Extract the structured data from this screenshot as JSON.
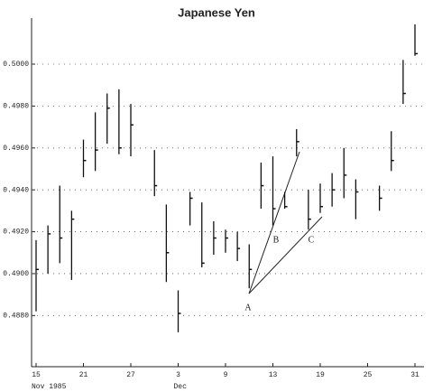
{
  "chart_data": {
    "type": "hlc",
    "title": "Japanese Yen",
    "categories": [
      "15",
      null,
      null,
      null,
      "21",
      null,
      null,
      null,
      "27",
      null,
      null,
      null,
      "3",
      null,
      null,
      null,
      "9",
      null,
      null,
      null,
      "13",
      null,
      null,
      null,
      "19",
      null,
      null,
      null,
      "25",
      null,
      null,
      null,
      "31"
    ],
    "month_labels": [
      "Nov 1985",
      null,
      null,
      null,
      null,
      null,
      null,
      null,
      null,
      null,
      null,
      null,
      "Dec",
      null,
      null,
      null,
      null,
      null,
      null,
      null,
      null,
      null,
      null,
      null,
      null,
      null,
      null,
      null,
      null,
      null,
      null,
      null,
      null
    ],
    "high": [
      0.4916,
      0.4923,
      0.4942,
      0.493,
      0.4964,
      0.4977,
      0.4986,
      0.4988,
      0.4981,
      null,
      0.4959,
      0.4933,
      0.4892,
      0.4939,
      0.4934,
      0.4925,
      0.4921,
      0.492,
      0.4914,
      0.4953,
      0.4956,
      0.4939,
      0.4969,
      0.494,
      0.4943,
      0.4948,
      0.496,
      0.4945,
      null,
      0.4942,
      0.4968,
      0.5002,
      0.5019
    ],
    "low": [
      0.4882,
      0.49,
      0.4905,
      0.4897,
      0.4946,
      0.4949,
      0.4962,
      0.4957,
      0.4956,
      null,
      0.4937,
      0.4896,
      0.4872,
      0.4923,
      0.4903,
      0.4909,
      0.491,
      0.4906,
      0.4893,
      0.4931,
      0.4923,
      0.4931,
      0.4956,
      0.4921,
      0.4929,
      0.4932,
      0.4936,
      0.4926,
      null,
      0.493,
      0.4949,
      0.4981,
      0.5004
    ],
    "close": [
      0.4902,
      0.4919,
      0.4917,
      0.4926,
      0.4954,
      0.4959,
      0.4979,
      0.496,
      0.4971,
      null,
      0.4942,
      0.491,
      0.4881,
      0.4936,
      0.4905,
      0.4917,
      0.4917,
      0.4912,
      0.4902,
      0.4942,
      0.4931,
      0.4932,
      0.4963,
      0.4926,
      0.4932,
      0.494,
      0.4947,
      0.4939,
      null,
      0.4936,
      0.4954,
      0.4986,
      0.5005
    ],
    "color": "#111111",
    "ylim": [
      0.4856,
      0.5022
    ],
    "yticks": [
      {
        "value": 0.488,
        "label": "0.4880"
      },
      {
        "value": 0.49,
        "label": "0.4900"
      },
      {
        "value": 0.492,
        "label": "0.4920"
      },
      {
        "value": 0.494,
        "label": "0.4940"
      },
      {
        "value": 0.496,
        "label": "0.4960"
      },
      {
        "value": 0.498,
        "label": "0.4980"
      },
      {
        "value": 0.5,
        "label": "0.5000"
      }
    ],
    "grid": true,
    "annotations": [
      "A",
      "B",
      "C"
    ]
  }
}
